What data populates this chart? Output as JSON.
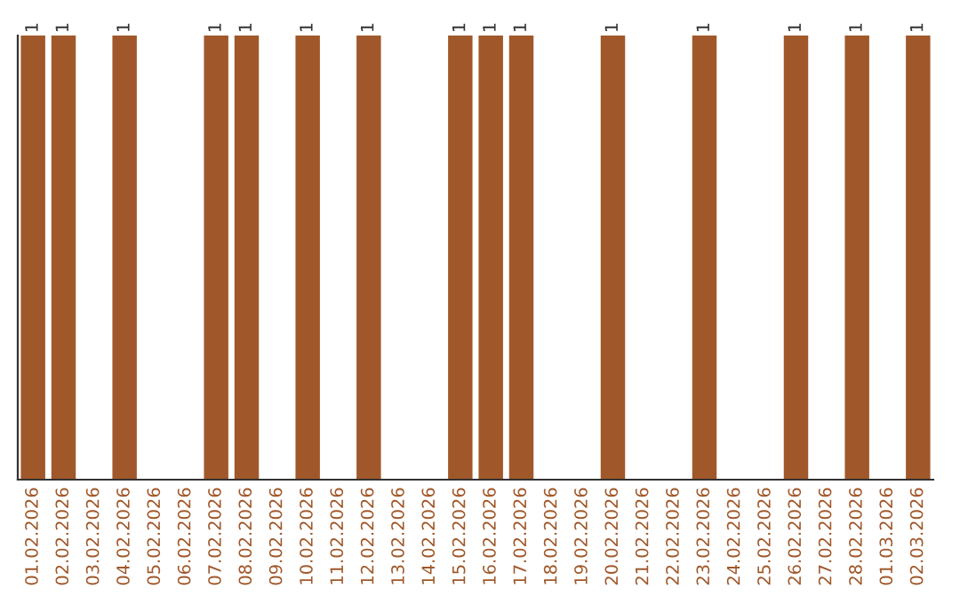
{
  "chart_data": {
    "type": "bar",
    "categories": [
      "01.02.2026",
      "02.02.2026",
      "03.02.2026",
      "04.02.2026",
      "05.02.2026",
      "06.02.2026",
      "07.02.2026",
      "08.02.2026",
      "09.02.2026",
      "10.02.2026",
      "11.02.2026",
      "12.02.2026",
      "13.02.2026",
      "14.02.2026",
      "15.02.2026",
      "16.02.2026",
      "17.02.2026",
      "18.02.2026",
      "19.02.2026",
      "20.02.2026",
      "21.02.2026",
      "22.02.2026",
      "23.02.2026",
      "24.02.2026",
      "25.02.2026",
      "26.02.2026",
      "27.02.2026",
      "28.02.2026",
      "01.03.2026",
      "02.03.2026"
    ],
    "values": [
      1,
      1,
      null,
      1,
      null,
      null,
      1,
      1,
      null,
      1,
      null,
      1,
      null,
      null,
      1,
      1,
      1,
      null,
      null,
      1,
      null,
      null,
      1,
      null,
      null,
      1,
      null,
      1,
      null,
      1
    ],
    "color": "#a0582a",
    "data_labels": true,
    "tick_labels": "x",
    "grid": false,
    "legend": false
  }
}
